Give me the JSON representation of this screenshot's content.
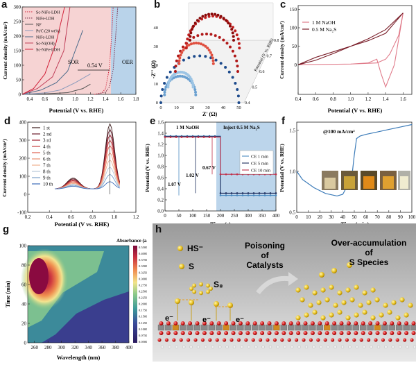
{
  "figure": {
    "labels": {
      "a": "a",
      "b": "b",
      "c": "c",
      "d": "d",
      "e": "e",
      "f": "f",
      "g": "g",
      "h": "h"
    }
  },
  "chart_data": [
    {
      "id": "a",
      "type": "line",
      "xlabel": "Potential (V vs. RHE)",
      "ylabel": "Current density (mA/cm²)",
      "xlim": [
        0.3,
        1.8
      ],
      "ylim": [
        0,
        300
      ],
      "xticks": [
        "0.4",
        "0.6",
        "0.8",
        "1.0",
        "1.2",
        "1.4",
        "1.6",
        "1.8"
      ],
      "yticks": [
        "0",
        "50",
        "100",
        "150",
        "200",
        "250",
        "300"
      ],
      "legend": [
        "Sc-NiFe-LDH",
        "NiFe-LDH",
        "NF",
        "Pt/C (20 wt%)",
        "NiFe-LDH",
        "Sc-Ni(OH)₂",
        "Sc-NiFe-LDH"
      ],
      "annotations": {
        "sor": "SOR",
        "oer": "OER",
        "gap": "0.54 V"
      },
      "series": [
        {
          "name": "Sc-NiFe-LDH (OER)",
          "style": "dotted",
          "color": "#d2233b",
          "x": [
            1.25,
            1.35,
            1.4,
            1.45,
            1.48,
            1.5
          ],
          "y": [
            0,
            5,
            20,
            90,
            200,
            300
          ]
        },
        {
          "name": "NiFe-LDH (OER)",
          "style": "dotted",
          "color": "#7a2d4a",
          "x": [
            1.28,
            1.4,
            1.45,
            1.5,
            1.53,
            1.56
          ],
          "y": [
            0,
            8,
            25,
            85,
            190,
            300
          ]
        },
        {
          "name": "NF",
          "style": "solid",
          "color": "#555555",
          "x": [
            0.3,
            0.6,
            0.9,
            1.1,
            1.2
          ],
          "y": [
            0,
            2,
            6,
            20,
            35
          ]
        },
        {
          "name": "Pt/C (20 wt%)",
          "style": "solid",
          "color": "#8899bb",
          "x": [
            0.3,
            0.6,
            0.8,
            1.0,
            1.2
          ],
          "y": [
            0,
            5,
            15,
            40,
            70
          ]
        },
        {
          "name": "NiFe-LDH (SOR)",
          "style": "solid",
          "color": "#4a6a8a",
          "x": [
            0.3,
            0.55,
            0.75,
            0.9,
            1.0,
            1.1
          ],
          "y": [
            0,
            15,
            40,
            80,
            150,
            220
          ]
        },
        {
          "name": "Sc-Ni(OH)₂",
          "style": "solid",
          "color": "#c0405a",
          "x": [
            0.3,
            0.5,
            0.7,
            0.85,
            0.93
          ],
          "y": [
            0,
            20,
            60,
            150,
            300
          ]
        },
        {
          "name": "Sc-NiFe-LDH (SOR)",
          "style": "solid",
          "color": "#d2233b",
          "x": [
            0.3,
            0.45,
            0.6,
            0.75,
            0.86
          ],
          "y": [
            0,
            20,
            70,
            180,
            300
          ]
        }
      ]
    },
    {
      "id": "b",
      "type": "scatter",
      "xlabel": "Z' (Ω)",
      "ylabel": "-Z'' (Ω)",
      "zlabel": "Potential (V vs. RHE)",
      "xticks": [
        "0",
        "10",
        "20",
        "30",
        "40",
        "50"
      ],
      "yticks": [
        "0",
        "10",
        "20",
        "30",
        "40"
      ],
      "zticks": [
        "0.4",
        "0.5",
        "0.6",
        "0.7",
        "0.8"
      ]
    },
    {
      "id": "c",
      "type": "line",
      "xlabel": "Potential (V vs. RHE)",
      "ylabel": "Current density (mA/cm²)",
      "xlim": [
        0.4,
        1.7
      ],
      "xticks": [
        "0.4",
        "0.6",
        "0.8",
        "1.0",
        "1.2",
        "1.4",
        "1.6"
      ],
      "yticks": [
        "0",
        "50",
        "100",
        "150"
      ],
      "legend": [
        "1 M NaOH",
        "0.5 M Na₂S"
      ],
      "series": [
        {
          "name": "1 M NaOH",
          "color": "#e07b8a",
          "x": [
            0.4,
            1.0,
            1.2,
            1.3,
            1.35,
            1.4,
            1.5,
            1.6,
            1.55,
            1.45,
            1.4,
            1.3,
            1.0,
            0.4
          ],
          "y": [
            0,
            2,
            5,
            15,
            -25,
            -60,
            0,
            140,
            80,
            30,
            15,
            5,
            2,
            0
          ]
        },
        {
          "name": "0.5 M Na₂S",
          "color": "#7a1f2a",
          "x": [
            0.4,
            0.6,
            0.8,
            1.0,
            1.2,
            1.4,
            1.6,
            1.4,
            1.2,
            1.0,
            0.8,
            0.6,
            0.4
          ],
          "y": [
            0,
            20,
            35,
            50,
            65,
            85,
            140,
            95,
            70,
            50,
            30,
            12,
            0
          ]
        }
      ]
    },
    {
      "id": "d",
      "type": "line",
      "xlabel": "Potential (V vs. RHE)",
      "ylabel": "Current density (mA/cm²)",
      "xlim": [
        0.2,
        1.2
      ],
      "ylim": [
        -100,
        400
      ],
      "xticks": [
        "0.2",
        "0.4",
        "0.6",
        "0.8",
        "1.0",
        "1.2"
      ],
      "yticks": [
        "-100",
        "0",
        "100",
        "200",
        "300",
        "400"
      ],
      "legend": [
        "1 st",
        "2 nd",
        "3 rd",
        "4 th",
        "5 th",
        "6 th",
        "7 th",
        "8 th",
        "9 th",
        "10 th"
      ]
    },
    {
      "id": "e",
      "type": "line",
      "xlabel": "Time (s)",
      "ylabel": "Potential (V vs. RHE)",
      "xlim": [
        0,
        400
      ],
      "ylim": [
        0.0,
        1.6
      ],
      "xticks": [
        "0",
        "50",
        "100",
        "150",
        "200",
        "250",
        "300",
        "350",
        "400"
      ],
      "yticks": [
        "0.0",
        "0.2",
        "0.4",
        "0.6",
        "0.8",
        "1.0",
        "1.2",
        "1.4",
        "1.6"
      ],
      "legend": [
        "CE 1 min",
        "CE 5 min",
        "CE 10 min"
      ],
      "annotations": {
        "left": "1 M NaOH",
        "right": "Inject 0.5 M Na₂S",
        "d1": "1.07 V",
        "d2": "1.02 V",
        "d3": "0.67 V"
      },
      "series": [
        {
          "name": "CE 1 min",
          "color": "#4a8ac0",
          "x": [
            0,
            200,
            200,
            400
          ],
          "y": [
            1.35,
            1.35,
            0.28,
            0.28
          ]
        },
        {
          "name": "CE 5 min",
          "color": "#1a2a5a",
          "x": [
            0,
            200,
            200,
            400
          ],
          "y": [
            1.34,
            1.34,
            0.32,
            0.32
          ]
        },
        {
          "name": "CE 10 min",
          "color": "#c0304a",
          "x": [
            0,
            200,
            200,
            400
          ],
          "y": [
            1.33,
            1.33,
            0.66,
            0.66
          ]
        }
      ]
    },
    {
      "id": "f",
      "type": "line",
      "xlabel": "Time (min)",
      "ylabel": "Potential (V vs. RHE)",
      "xlim": [
        0,
        100
      ],
      "ylim": [
        0.5,
        1.6
      ],
      "xticks": [
        "0",
        "10",
        "20",
        "30",
        "40",
        "50",
        "60",
        "70",
        "80",
        "90",
        "100"
      ],
      "yticks": [
        "0.5",
        "1.0",
        "1.5"
      ],
      "annotations": {
        "current": "@100 mA/cm²"
      },
      "series": [
        {
          "name": "potential",
          "color": "#3a7ab8",
          "x": [
            0,
            5,
            15,
            25,
            35,
            40,
            45,
            48,
            50,
            52,
            55,
            60,
            70,
            80,
            90,
            100
          ],
          "y": [
            1.0,
            0.9,
            0.8,
            0.73,
            0.7,
            0.72,
            0.85,
            0.95,
            1.2,
            1.4,
            1.43,
            1.45,
            1.48,
            1.51,
            1.54,
            1.57
          ]
        }
      ]
    },
    {
      "id": "g",
      "type": "heatmap",
      "title": "Absorbance (a.u.)",
      "xlabel": "Wavelength (nm)",
      "ylabel": "Time (min)",
      "xticks": [
        "260",
        "280",
        "300",
        "320",
        "340",
        "360",
        "380",
        "400"
      ],
      "yticks": [
        "0",
        "20",
        "40",
        "60",
        "80",
        "100"
      ],
      "colorbar_ticks": [
        "0.5500",
        "0.4000",
        "0.3750",
        "0.3500",
        "0.3250",
        "0.3000",
        "0.2750",
        "0.2500",
        "0.2250",
        "0.2000",
        "0.1750",
        "0.1500",
        "0.1250",
        "0.1000",
        "0.0750",
        "0.0500"
      ]
    }
  ],
  "schematic": {
    "hs": "HS⁻",
    "s": "S",
    "s8": "S₈",
    "e1": "e⁻",
    "e2": "e⁻",
    "e3": "e⁻",
    "poison": [
      "Poisoning",
      "of",
      "Catalysts"
    ],
    "over": [
      "Over-accumulation",
      "of",
      "S Species"
    ]
  }
}
